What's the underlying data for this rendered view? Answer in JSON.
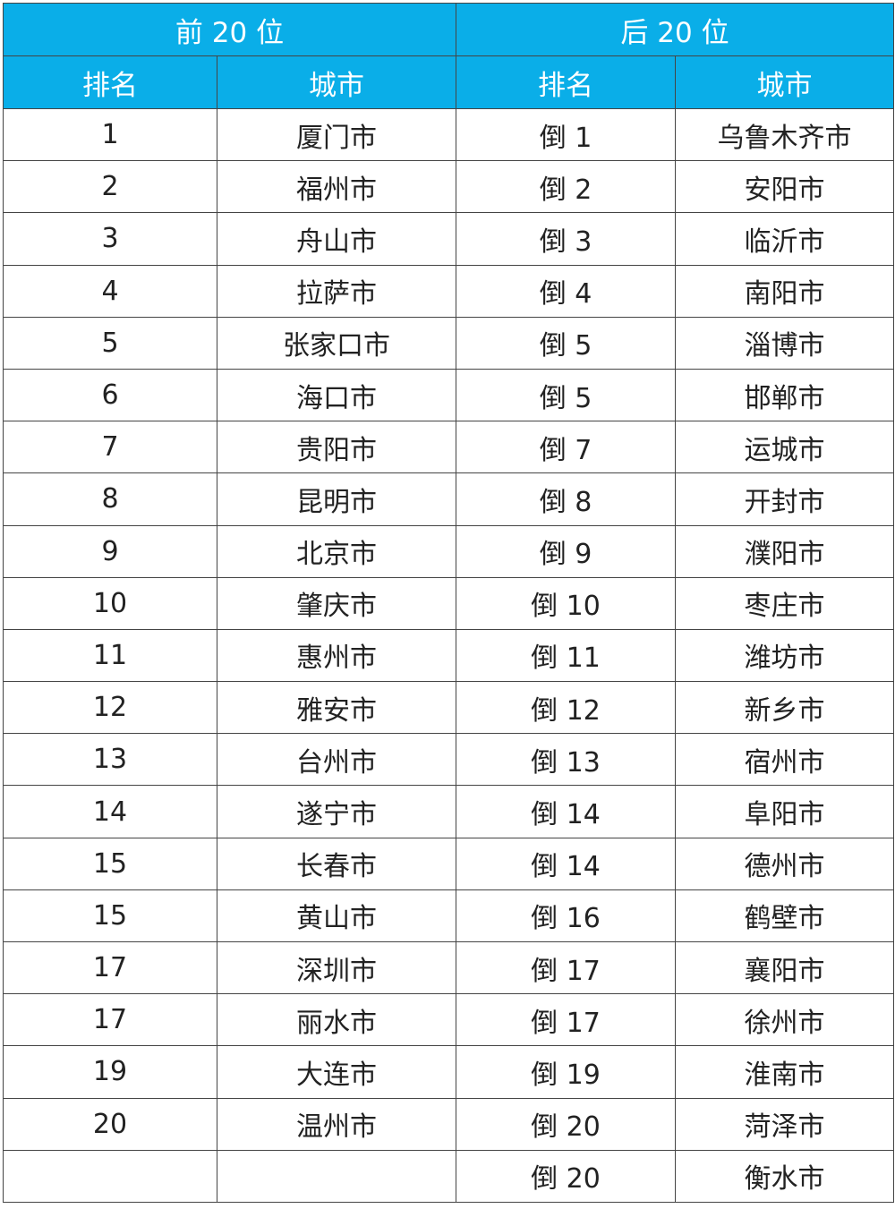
{
  "header_color": "#0aaee8",
  "groups": {
    "top": "前 20 位",
    "bottom": "后 20 位"
  },
  "columns": {
    "rank": "排名",
    "city": "城市"
  },
  "rows": [
    {
      "top_rank": "1",
      "top_city": "厦门市",
      "bottom_rank": "倒 1",
      "bottom_city": "乌鲁木齐市"
    },
    {
      "top_rank": "2",
      "top_city": "福州市",
      "bottom_rank": "倒 2",
      "bottom_city": "安阳市"
    },
    {
      "top_rank": "3",
      "top_city": "舟山市",
      "bottom_rank": "倒 3",
      "bottom_city": "临沂市"
    },
    {
      "top_rank": "4",
      "top_city": "拉萨市",
      "bottom_rank": "倒 4",
      "bottom_city": "南阳市"
    },
    {
      "top_rank": "5",
      "top_city": "张家口市",
      "bottom_rank": "倒 5",
      "bottom_city": "淄博市"
    },
    {
      "top_rank": "6",
      "top_city": "海口市",
      "bottom_rank": "倒 5",
      "bottom_city": "邯郸市"
    },
    {
      "top_rank": "7",
      "top_city": "贵阳市",
      "bottom_rank": "倒 7",
      "bottom_city": "运城市"
    },
    {
      "top_rank": "8",
      "top_city": "昆明市",
      "bottom_rank": "倒 8",
      "bottom_city": "开封市"
    },
    {
      "top_rank": "9",
      "top_city": "北京市",
      "bottom_rank": "倒 9",
      "bottom_city": "濮阳市"
    },
    {
      "top_rank": "10",
      "top_city": "肇庆市",
      "bottom_rank": "倒 10",
      "bottom_city": "枣庄市"
    },
    {
      "top_rank": "11",
      "top_city": "惠州市",
      "bottom_rank": "倒 11",
      "bottom_city": "潍坊市"
    },
    {
      "top_rank": "12",
      "top_city": "雅安市",
      "bottom_rank": "倒 12",
      "bottom_city": "新乡市"
    },
    {
      "top_rank": "13",
      "top_city": "台州市",
      "bottom_rank": "倒 13",
      "bottom_city": "宿州市"
    },
    {
      "top_rank": "14",
      "top_city": "遂宁市",
      "bottom_rank": "倒 14",
      "bottom_city": "阜阳市"
    },
    {
      "top_rank": "15",
      "top_city": "长春市",
      "bottom_rank": "倒 14",
      "bottom_city": "德州市"
    },
    {
      "top_rank": "15",
      "top_city": "黄山市",
      "bottom_rank": "倒 16",
      "bottom_city": "鹤壁市"
    },
    {
      "top_rank": "17",
      "top_city": "深圳市",
      "bottom_rank": "倒 17",
      "bottom_city": "襄阳市"
    },
    {
      "top_rank": "17",
      "top_city": "丽水市",
      "bottom_rank": "倒 17",
      "bottom_city": "徐州市"
    },
    {
      "top_rank": "19",
      "top_city": "大连市",
      "bottom_rank": "倒 19",
      "bottom_city": "淮南市"
    },
    {
      "top_rank": "20",
      "top_city": "温州市",
      "bottom_rank": "倒 20",
      "bottom_city": "菏泽市"
    },
    {
      "top_rank": "",
      "top_city": "",
      "bottom_rank": "倒 20",
      "bottom_city": "衡水市"
    }
  ]
}
